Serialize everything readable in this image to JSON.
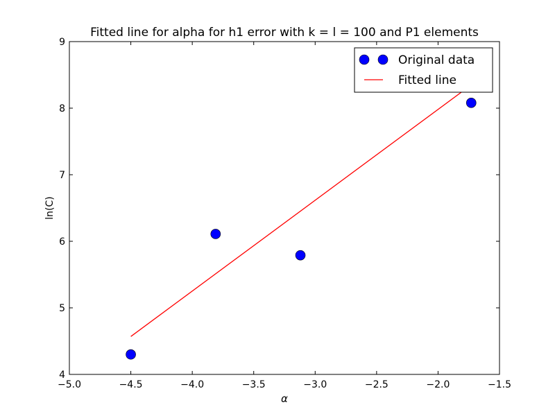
{
  "chart_data": {
    "type": "scatter",
    "title": "Fitted line for alpha for h1 error with k = l = 100 and P1 elements",
    "xlabel": "α",
    "ylabel": "ln(C)",
    "xlim": [
      -5.0,
      -1.5
    ],
    "ylim": [
      4,
      9
    ],
    "x_ticks": [
      -5.0,
      -4.5,
      -4.0,
      -3.5,
      -3.0,
      -2.5,
      -2.0,
      -1.5
    ],
    "x_tick_labels": [
      "−5.0",
      "−4.5",
      "−4.0",
      "−3.5",
      "−3.0",
      "−2.5",
      "−2.0",
      "−1.5"
    ],
    "y_ticks": [
      4,
      5,
      6,
      7,
      8,
      9
    ],
    "y_tick_labels": [
      "4",
      "5",
      "6",
      "7",
      "8",
      "9"
    ],
    "grid": false,
    "legend_position": "top-right",
    "series": [
      {
        "name": "Original data",
        "kind": "scatter",
        "color": "#0000ff",
        "points": [
          {
            "x": -4.5,
            "y": 4.3
          },
          {
            "x": -3.81,
            "y": 6.11
          },
          {
            "x": -3.12,
            "y": 5.79
          },
          {
            "x": -1.73,
            "y": 8.08
          }
        ]
      },
      {
        "name": "Fitted line",
        "kind": "line",
        "color": "#ff0000",
        "points": [
          {
            "x": -4.5,
            "y": 4.57
          },
          {
            "x": -1.73,
            "y": 8.35
          }
        ]
      }
    ]
  }
}
